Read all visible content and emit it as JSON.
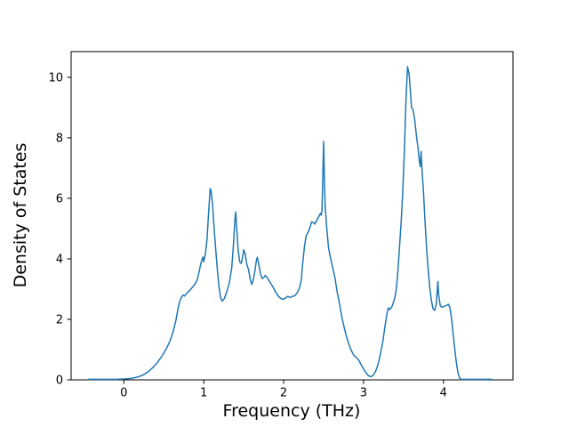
{
  "chart_data": {
    "type": "line",
    "title": "",
    "xlabel": "Frequency (THz)",
    "ylabel": "Density of States",
    "xlim": [
      -0.66,
      4.87
    ],
    "ylim": [
      0,
      10.85
    ],
    "xticks": [
      0,
      1,
      2,
      3,
      4
    ],
    "yticks": [
      0,
      2,
      4,
      6,
      8,
      10
    ],
    "grid": false,
    "legend": "none",
    "line_color": "#1f77b4",
    "line_width": 1.5,
    "spine_color": "#000000",
    "background_color": "#ffffff",
    "series": [
      {
        "name": "density-of-states",
        "points": [
          [
            -0.44,
            0.02
          ],
          [
            -0.3,
            0.02
          ],
          [
            -0.2,
            0.02
          ],
          [
            -0.1,
            0.02
          ],
          [
            0.0,
            0.03
          ],
          [
            0.06,
            0.04
          ],
          [
            0.12,
            0.06
          ],
          [
            0.18,
            0.1
          ],
          [
            0.24,
            0.16
          ],
          [
            0.3,
            0.26
          ],
          [
            0.36,
            0.4
          ],
          [
            0.42,
            0.57
          ],
          [
            0.48,
            0.8
          ],
          [
            0.53,
            1.02
          ],
          [
            0.58,
            1.3
          ],
          [
            0.62,
            1.62
          ],
          [
            0.65,
            1.95
          ],
          [
            0.68,
            2.38
          ],
          [
            0.7,
            2.6
          ],
          [
            0.72,
            2.73
          ],
          [
            0.74,
            2.8
          ],
          [
            0.76,
            2.77
          ],
          [
            0.78,
            2.84
          ],
          [
            0.81,
            2.92
          ],
          [
            0.84,
            3.0
          ],
          [
            0.87,
            3.1
          ],
          [
            0.9,
            3.2
          ],
          [
            0.92,
            3.33
          ],
          [
            0.94,
            3.55
          ],
          [
            0.96,
            3.8
          ],
          [
            0.98,
            4.0
          ],
          [
            0.99,
            4.06
          ],
          [
            1.0,
            3.9
          ],
          [
            1.02,
            4.16
          ],
          [
            1.04,
            4.62
          ],
          [
            1.06,
            5.5
          ],
          [
            1.08,
            6.32
          ],
          [
            1.09,
            6.27
          ],
          [
            1.11,
            5.8
          ],
          [
            1.13,
            5.0
          ],
          [
            1.15,
            4.3
          ],
          [
            1.17,
            3.65
          ],
          [
            1.19,
            3.08
          ],
          [
            1.21,
            2.72
          ],
          [
            1.23,
            2.6
          ],
          [
            1.26,
            2.7
          ],
          [
            1.29,
            2.93
          ],
          [
            1.32,
            3.2
          ],
          [
            1.35,
            3.7
          ],
          [
            1.37,
            4.4
          ],
          [
            1.39,
            5.3
          ],
          [
            1.4,
            5.55
          ],
          [
            1.41,
            5.1
          ],
          [
            1.43,
            4.3
          ],
          [
            1.45,
            3.9
          ],
          [
            1.47,
            3.85
          ],
          [
            1.49,
            4.12
          ],
          [
            1.5,
            4.3
          ],
          [
            1.52,
            4.15
          ],
          [
            1.54,
            3.8
          ],
          [
            1.56,
            3.65
          ],
          [
            1.58,
            3.35
          ],
          [
            1.6,
            3.15
          ],
          [
            1.62,
            3.3
          ],
          [
            1.64,
            3.6
          ],
          [
            1.66,
            3.97
          ],
          [
            1.67,
            4.05
          ],
          [
            1.69,
            3.8
          ],
          [
            1.71,
            3.5
          ],
          [
            1.73,
            3.35
          ],
          [
            1.75,
            3.38
          ],
          [
            1.77,
            3.45
          ],
          [
            1.79,
            3.4
          ],
          [
            1.81,
            3.3
          ],
          [
            1.84,
            3.18
          ],
          [
            1.87,
            3.05
          ],
          [
            1.9,
            2.9
          ],
          [
            1.93,
            2.78
          ],
          [
            1.96,
            2.7
          ],
          [
            1.99,
            2.66
          ],
          [
            2.02,
            2.7
          ],
          [
            2.05,
            2.76
          ],
          [
            2.08,
            2.72
          ],
          [
            2.11,
            2.76
          ],
          [
            2.14,
            2.78
          ],
          [
            2.17,
            2.88
          ],
          [
            2.2,
            3.05
          ],
          [
            2.22,
            3.3
          ],
          [
            2.24,
            3.9
          ],
          [
            2.26,
            4.4
          ],
          [
            2.28,
            4.75
          ],
          [
            2.31,
            4.9
          ],
          [
            2.33,
            5.05
          ],
          [
            2.35,
            5.22
          ],
          [
            2.37,
            5.2
          ],
          [
            2.39,
            5.15
          ],
          [
            2.42,
            5.3
          ],
          [
            2.44,
            5.4
          ],
          [
            2.46,
            5.5
          ],
          [
            2.47,
            5.44
          ],
          [
            2.48,
            5.6
          ],
          [
            2.5,
            7.88
          ],
          [
            2.51,
            6.6
          ],
          [
            2.52,
            5.7
          ],
          [
            2.54,
            5.0
          ],
          [
            2.56,
            4.4
          ],
          [
            2.58,
            4.1
          ],
          [
            2.61,
            3.75
          ],
          [
            2.64,
            3.4
          ],
          [
            2.67,
            2.9
          ],
          [
            2.7,
            2.5
          ],
          [
            2.73,
            2.05
          ],
          [
            2.76,
            1.7
          ],
          [
            2.79,
            1.4
          ],
          [
            2.82,
            1.15
          ],
          [
            2.85,
            0.95
          ],
          [
            2.88,
            0.8
          ],
          [
            2.91,
            0.74
          ],
          [
            2.94,
            0.65
          ],
          [
            2.97,
            0.5
          ],
          [
            3.0,
            0.36
          ],
          [
            3.03,
            0.24
          ],
          [
            3.06,
            0.14
          ],
          [
            3.09,
            0.1
          ],
          [
            3.12,
            0.15
          ],
          [
            3.15,
            0.28
          ],
          [
            3.18,
            0.5
          ],
          [
            3.21,
            0.85
          ],
          [
            3.24,
            1.25
          ],
          [
            3.27,
            1.8
          ],
          [
            3.29,
            2.15
          ],
          [
            3.31,
            2.38
          ],
          [
            3.33,
            2.32
          ],
          [
            3.36,
            2.45
          ],
          [
            3.39,
            2.7
          ],
          [
            3.41,
            3.0
          ],
          [
            3.43,
            3.6
          ],
          [
            3.45,
            4.4
          ],
          [
            3.47,
            5.2
          ],
          [
            3.49,
            6.2
          ],
          [
            3.51,
            7.5
          ],
          [
            3.53,
            9.2
          ],
          [
            3.55,
            10.35
          ],
          [
            3.57,
            10.1
          ],
          [
            3.59,
            9.4
          ],
          [
            3.6,
            9.0
          ],
          [
            3.62,
            8.92
          ],
          [
            3.64,
            8.6
          ],
          [
            3.66,
            8.1
          ],
          [
            3.68,
            7.7
          ],
          [
            3.7,
            7.2
          ],
          [
            3.71,
            7.05
          ],
          [
            3.72,
            7.55
          ],
          [
            3.73,
            7.0
          ],
          [
            3.75,
            6.2
          ],
          [
            3.77,
            5.2
          ],
          [
            3.79,
            4.3
          ],
          [
            3.81,
            3.6
          ],
          [
            3.83,
            3.0
          ],
          [
            3.85,
            2.6
          ],
          [
            3.87,
            2.35
          ],
          [
            3.89,
            2.3
          ],
          [
            3.91,
            2.5
          ],
          [
            3.93,
            3.25
          ],
          [
            3.94,
            2.8
          ],
          [
            3.96,
            2.45
          ],
          [
            3.98,
            2.4
          ],
          [
            4.01,
            2.43
          ],
          [
            4.04,
            2.46
          ],
          [
            4.06,
            2.5
          ],
          [
            4.08,
            2.4
          ],
          [
            4.1,
            2.05
          ],
          [
            4.12,
            1.55
          ],
          [
            4.14,
            1.05
          ],
          [
            4.16,
            0.6
          ],
          [
            4.18,
            0.25
          ],
          [
            4.2,
            0.07
          ],
          [
            4.22,
            0.02
          ],
          [
            4.3,
            0.02
          ],
          [
            4.4,
            0.02
          ],
          [
            4.5,
            0.02
          ],
          [
            4.6,
            0.02
          ]
        ]
      }
    ]
  }
}
